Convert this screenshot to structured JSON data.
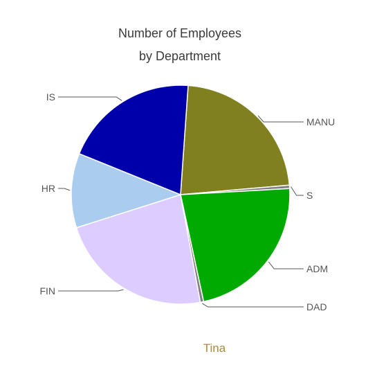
{
  "chart_data": {
    "type": "pie",
    "title_lines": [
      "Number of Employees",
      "by Department"
    ],
    "slices": [
      {
        "label": "MANU",
        "value": 22.5,
        "color": "#808020"
      },
      {
        "label": "S",
        "value": 0.5,
        "color": "#808080"
      },
      {
        "label": "ADM",
        "value": 22.5,
        "color": "#00aa00"
      },
      {
        "label": "DAD",
        "value": 0.5,
        "color": "#808080"
      },
      {
        "label": "FIN",
        "value": 23.0,
        "color": "#ddccff"
      },
      {
        "label": "HR",
        "value": 11.0,
        "color": "#aaccee"
      },
      {
        "label": "IS",
        "value": 20.0,
        "color": "#0000aa"
      }
    ],
    "legend": "none"
  },
  "caption": "Tina"
}
